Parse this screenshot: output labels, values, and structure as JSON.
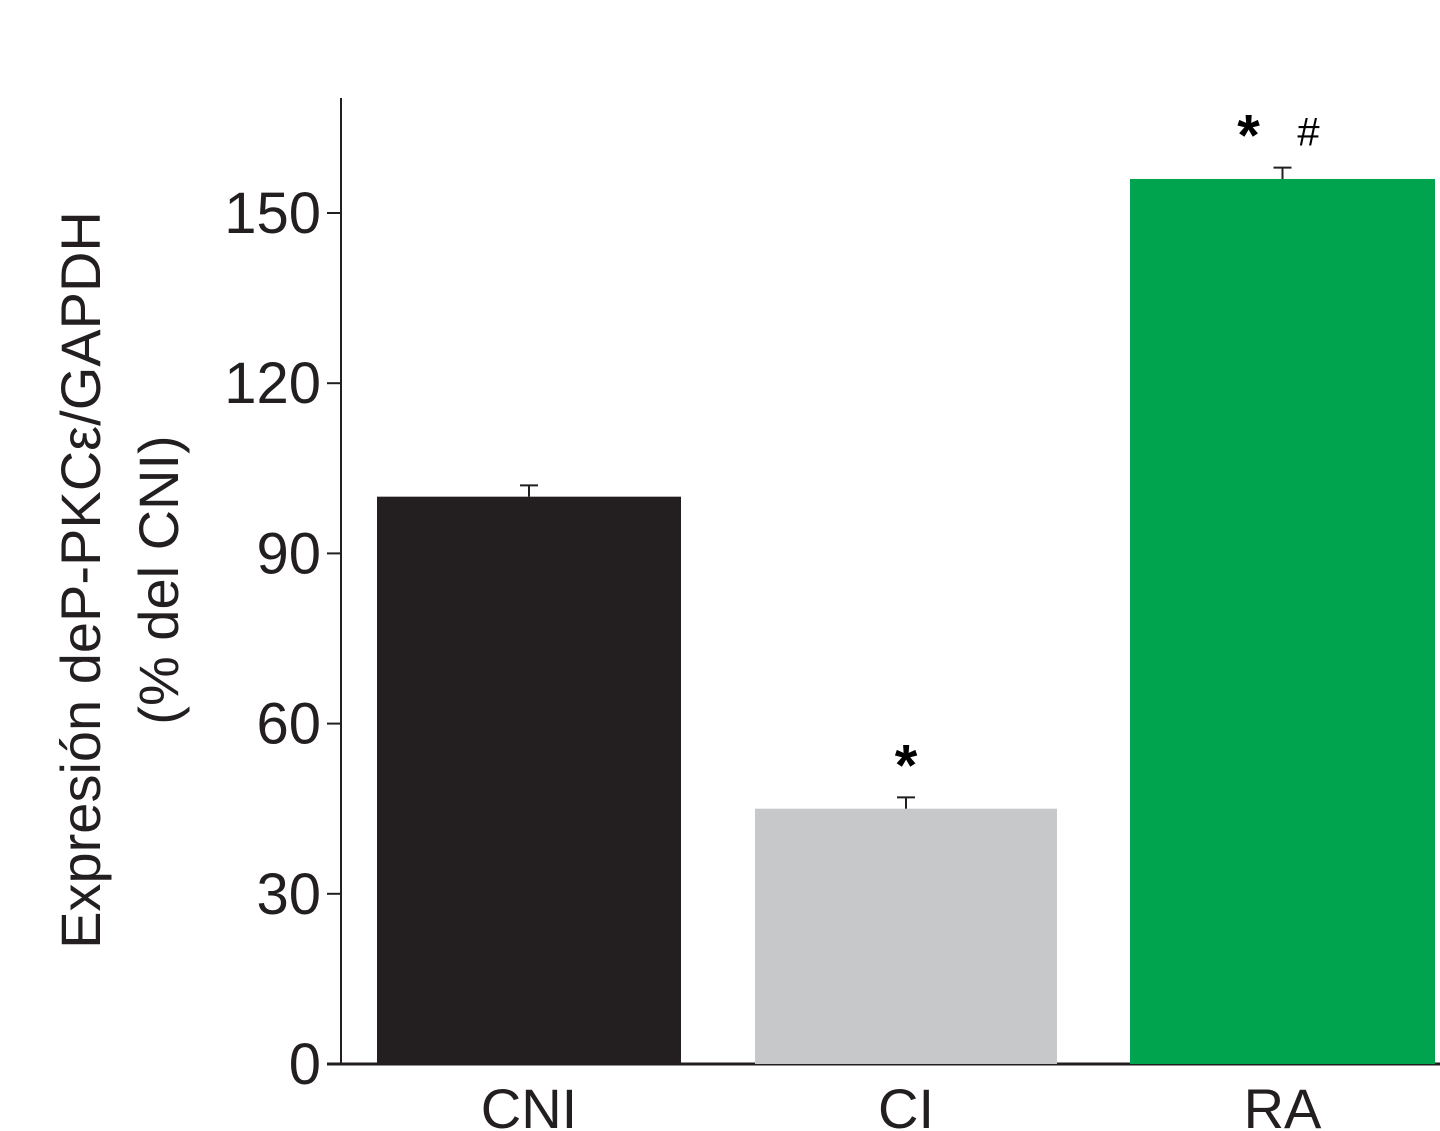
{
  "chart_data": {
    "type": "bar",
    "title": "",
    "ylabel_line1": "Expresión deP-PKCε/GAPDH",
    "ylabel_line2": "(% del CNI)",
    "xlabel": "",
    "categories": [
      "CNI",
      "CI",
      "RA"
    ],
    "values": [
      100,
      45,
      156
    ],
    "errors": [
      2,
      2,
      2
    ],
    "annotations": [
      "",
      "*",
      "*   #"
    ],
    "ylim": [
      0,
      170
    ],
    "yticks": [
      0,
      30,
      60,
      90,
      120,
      150
    ],
    "colors": [
      "#231f20",
      "#c7c8ca",
      "#00a44f"
    ],
    "grid": false,
    "legend": "none"
  }
}
